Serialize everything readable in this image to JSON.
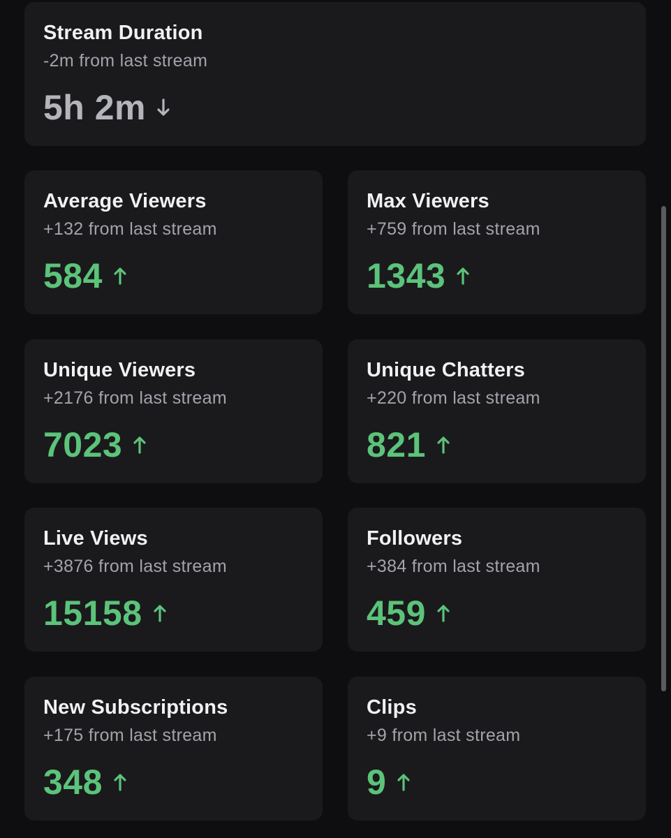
{
  "cards": [
    {
      "title": "Stream Duration",
      "change": "-2m from last stream",
      "value": "5h 2m",
      "trend": "down"
    },
    {
      "title": "Average Viewers",
      "change": "+132 from last stream",
      "value": "584",
      "trend": "up"
    },
    {
      "title": "Max Viewers",
      "change": "+759 from last stream",
      "value": "1343",
      "trend": "up"
    },
    {
      "title": "Unique Viewers",
      "change": "+2176 from last stream",
      "value": "7023",
      "trend": "up"
    },
    {
      "title": "Unique Chatters",
      "change": "+220 from last stream",
      "value": "821",
      "trend": "up"
    },
    {
      "title": "Live Views",
      "change": "+3876 from last stream",
      "value": "15158",
      "trend": "up"
    },
    {
      "title": "Followers",
      "change": "+384 from last stream",
      "value": "459",
      "trend": "up"
    },
    {
      "title": "New Subscriptions",
      "change": "+175 from last stream",
      "value": "348",
      "trend": "up"
    },
    {
      "title": "Clips",
      "change": "+9 from last stream",
      "value": "9",
      "trend": "up"
    }
  ]
}
